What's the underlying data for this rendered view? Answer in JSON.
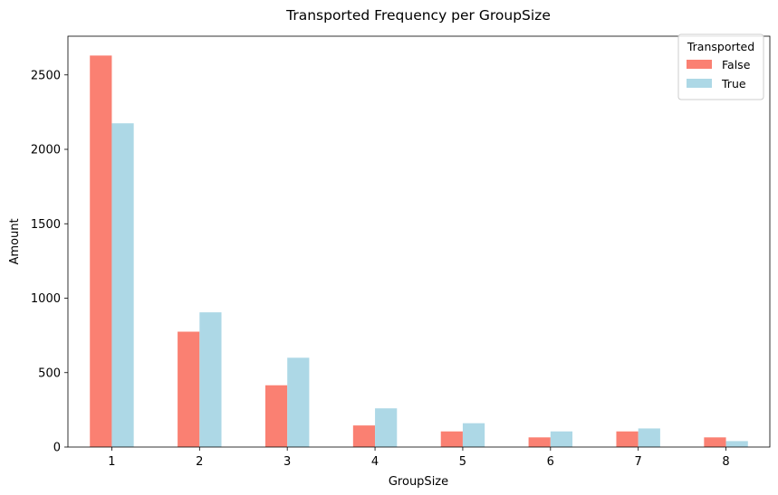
{
  "chart_data": {
    "type": "bar",
    "title": "Transported Frequency per GroupSize",
    "xlabel": "GroupSize",
    "ylabel": "Amount",
    "categories": [
      "1",
      "2",
      "3",
      "4",
      "5",
      "6",
      "7",
      "8"
    ],
    "series": [
      {
        "name": "False",
        "color": "#fa8072",
        "values": [
          2630,
          775,
          415,
          145,
          105,
          65,
          105,
          65
        ]
      },
      {
        "name": "True",
        "color": "#add8e6",
        "values": [
          2175,
          905,
          600,
          260,
          160,
          105,
          125,
          40
        ]
      }
    ],
    "ylim": [
      0,
      2760
    ],
    "yticks": [
      0,
      500,
      1000,
      1500,
      2000,
      2500
    ],
    "grid": false,
    "legend": {
      "title": "Transported",
      "position": "top-right"
    }
  }
}
